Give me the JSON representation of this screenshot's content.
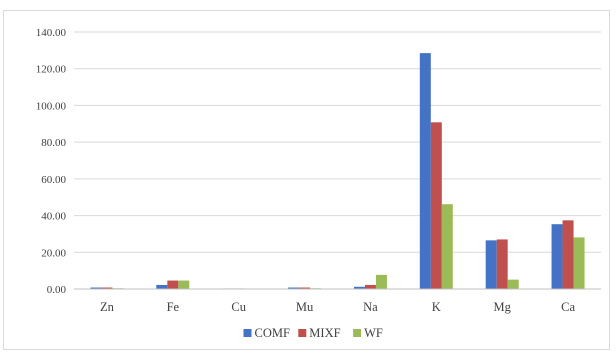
{
  "chart_data": {
    "type": "bar",
    "title": "",
    "xlabel": "",
    "ylabel": "",
    "categories": [
      "Zn",
      "Fe",
      "Cu",
      "Mu",
      "Na",
      "K",
      "Mg",
      "Ca"
    ],
    "series": [
      {
        "name": "COMF",
        "color": "#4472C4",
        "values": [
          0.8,
          2.2,
          0.3,
          0.8,
          1.2,
          128.5,
          26.5,
          35.3
        ]
      },
      {
        "name": "MIXF",
        "color": "#C0504D",
        "values": [
          0.8,
          4.6,
          0.3,
          0.8,
          2.2,
          90.8,
          27.0,
          37.4
        ]
      },
      {
        "name": "WF",
        "color": "#9BBB59",
        "values": [
          0.4,
          4.6,
          0.2,
          0.4,
          7.7,
          46.2,
          5.1,
          28.1
        ]
      }
    ],
    "ylim": [
      0,
      140
    ],
    "yticks": [
      "0.00",
      "20.00",
      "40.00",
      "60.00",
      "80.00",
      "100.00",
      "120.00",
      "140.00"
    ],
    "grid": true,
    "legend_position": "bottom"
  }
}
